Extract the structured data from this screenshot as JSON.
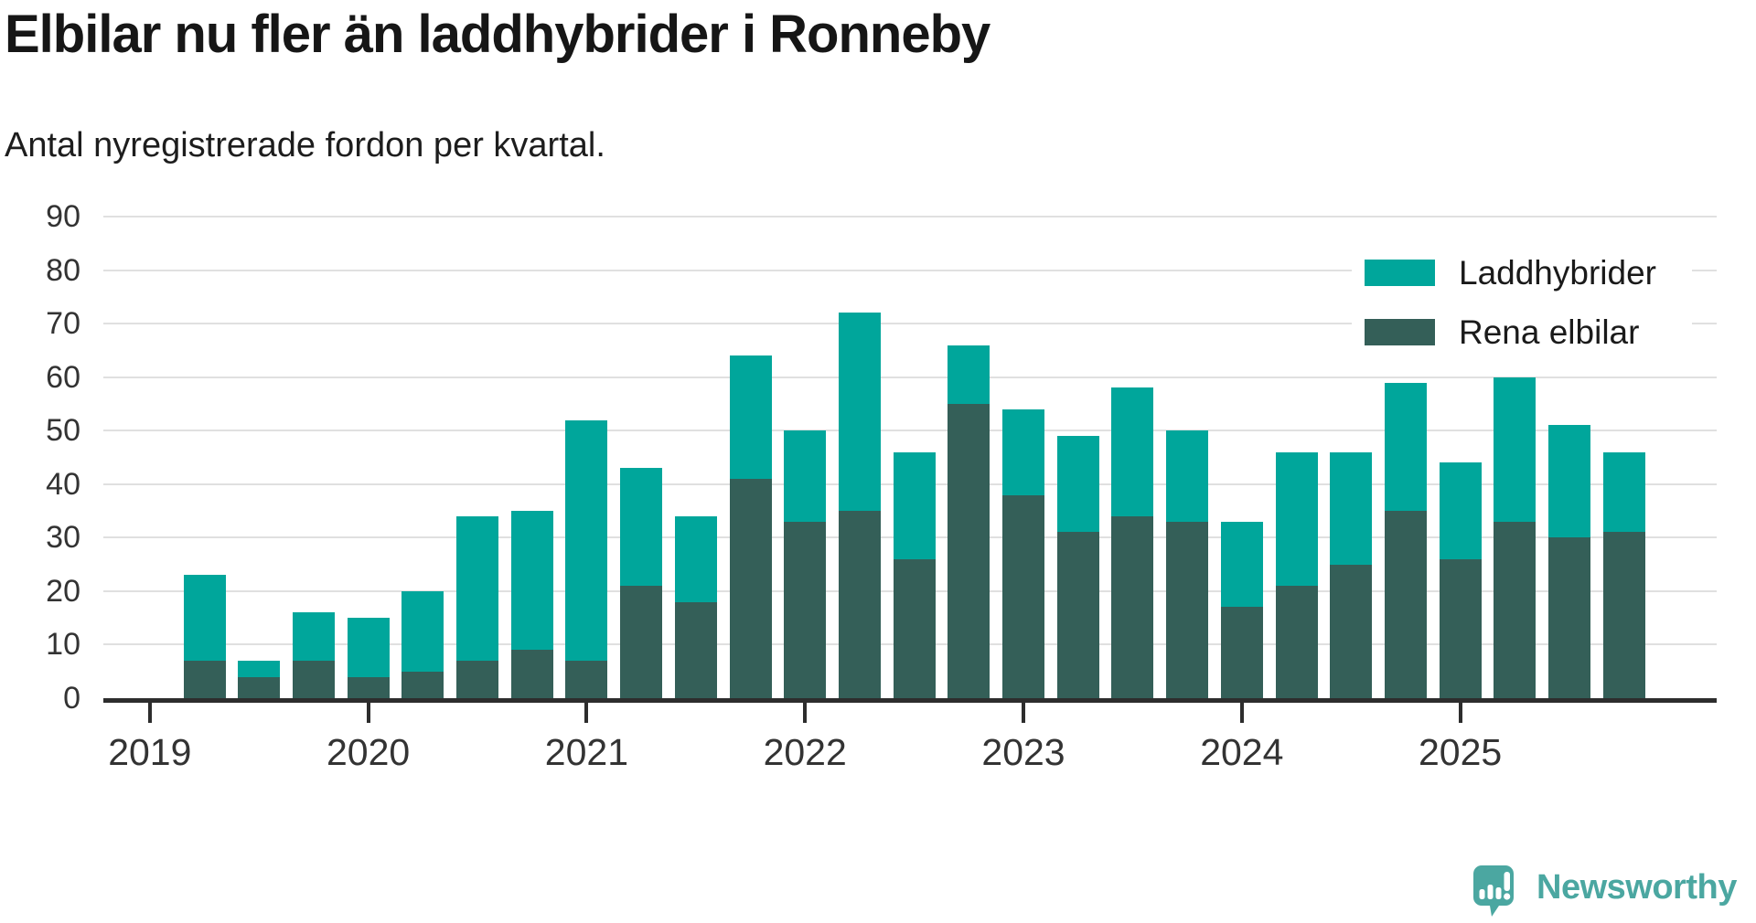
{
  "header": {
    "title": "Elbilar nu fler än laddhybrider i Ronneby",
    "subtitle": "Antal nyregistrerade fordon per kvartal."
  },
  "chart_data": {
    "type": "bar",
    "stacked": true,
    "title": "Elbilar nu fler än laddhybrider i Ronneby",
    "subtitle": "Antal nyregistrerade fordon per kvartal.",
    "categories": [
      "2019 Q2",
      "2019 Q3",
      "2019 Q4",
      "2020 Q1",
      "2020 Q2",
      "2020 Q3",
      "2020 Q4",
      "2021 Q1",
      "2021 Q2",
      "2021 Q3",
      "2021 Q4",
      "2022 Q1",
      "2022 Q2",
      "2022 Q3",
      "2022 Q4",
      "2023 Q1",
      "2023 Q2",
      "2023 Q3",
      "2023 Q4",
      "2024 Q1",
      "2024 Q2",
      "2024 Q3",
      "2024 Q4",
      "2025 Q1",
      "2025 Q2",
      "2025 Q3",
      "2025 Q4"
    ],
    "series": [
      {
        "name": "Laddhybrider",
        "color": "#00a69b",
        "stack_position": "top",
        "values": [
          16,
          3,
          9,
          11,
          15,
          27,
          26,
          45,
          22,
          16,
          23,
          17,
          37,
          20,
          11,
          16,
          18,
          24,
          17,
          16,
          25,
          21,
          24,
          18,
          27,
          21,
          15
        ]
      },
      {
        "name": "Rena elbilar",
        "color": "#345f58",
        "stack_position": "bottom",
        "values": [
          7,
          4,
          7,
          4,
          5,
          7,
          9,
          7,
          21,
          18,
          41,
          33,
          35,
          26,
          55,
          38,
          31,
          34,
          33,
          17,
          21,
          25,
          35,
          26,
          33,
          30,
          31
        ]
      }
    ],
    "totals": [
      23,
      7,
      16,
      15,
      20,
      34,
      35,
      52,
      43,
      34,
      64,
      50,
      72,
      46,
      66,
      54,
      49,
      58,
      50,
      33,
      46,
      46,
      59,
      44,
      60,
      51,
      46
    ],
    "ylim": [
      0,
      90
    ],
    "yticks": [
      0,
      10,
      20,
      30,
      40,
      50,
      60,
      70,
      80,
      90
    ],
    "x_year_ticks": [
      "2019",
      "2020",
      "2021",
      "2022",
      "2023",
      "2024",
      "2025"
    ],
    "grid": "horizontal",
    "legend_position": "top-right"
  },
  "footer": {
    "brand_label": "Newsworthy",
    "brand_icon": "newsworthy-speech-bubble-chart-icon"
  },
  "colors": {
    "laddhybrider": "#00a69b",
    "rena_elbilar": "#345f58",
    "axis": "#2d2d2d",
    "grid": "#e0e0e0",
    "tick_label": "#333333",
    "title_text": "#161616",
    "brand": "#4ba7a1",
    "background": "#ffffff"
  }
}
